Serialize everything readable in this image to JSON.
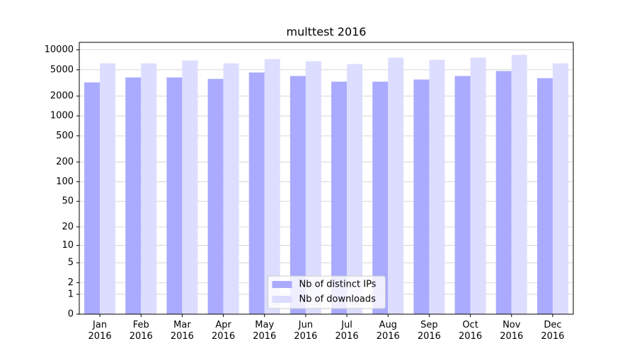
{
  "chart_data": {
    "type": "bar",
    "title": "multtest 2016",
    "scale": "log1p",
    "grid": true,
    "legend": "lower center",
    "categories": [
      "Jan 2016",
      "Feb 2016",
      "Mar 2016",
      "Apr 2016",
      "May 2016",
      "Jun 2016",
      "Jul 2016",
      "Aug 2016",
      "Sep 2016",
      "Oct 2016",
      "Nov 2016",
      "Dec 2016"
    ],
    "series": [
      {
        "name": "Nb of distinct IPs",
        "color": "#aaaaff",
        "values": [
          3220,
          3830,
          3830,
          3640,
          4550,
          4020,
          3300,
          3300,
          3560,
          4020,
          4780,
          3730
        ]
      },
      {
        "name": "Nb of downloads",
        "color": "#ddddff",
        "values": [
          6260,
          6260,
          6910,
          6260,
          7260,
          6740,
          6110,
          7630,
          7080,
          7630,
          8420,
          6260
        ]
      }
    ],
    "ylim": [
      0,
      13000
    ],
    "yticks": [
      0,
      1,
      2,
      5,
      10,
      20,
      50,
      100,
      200,
      500,
      1000,
      2000,
      5000,
      10000
    ]
  }
}
